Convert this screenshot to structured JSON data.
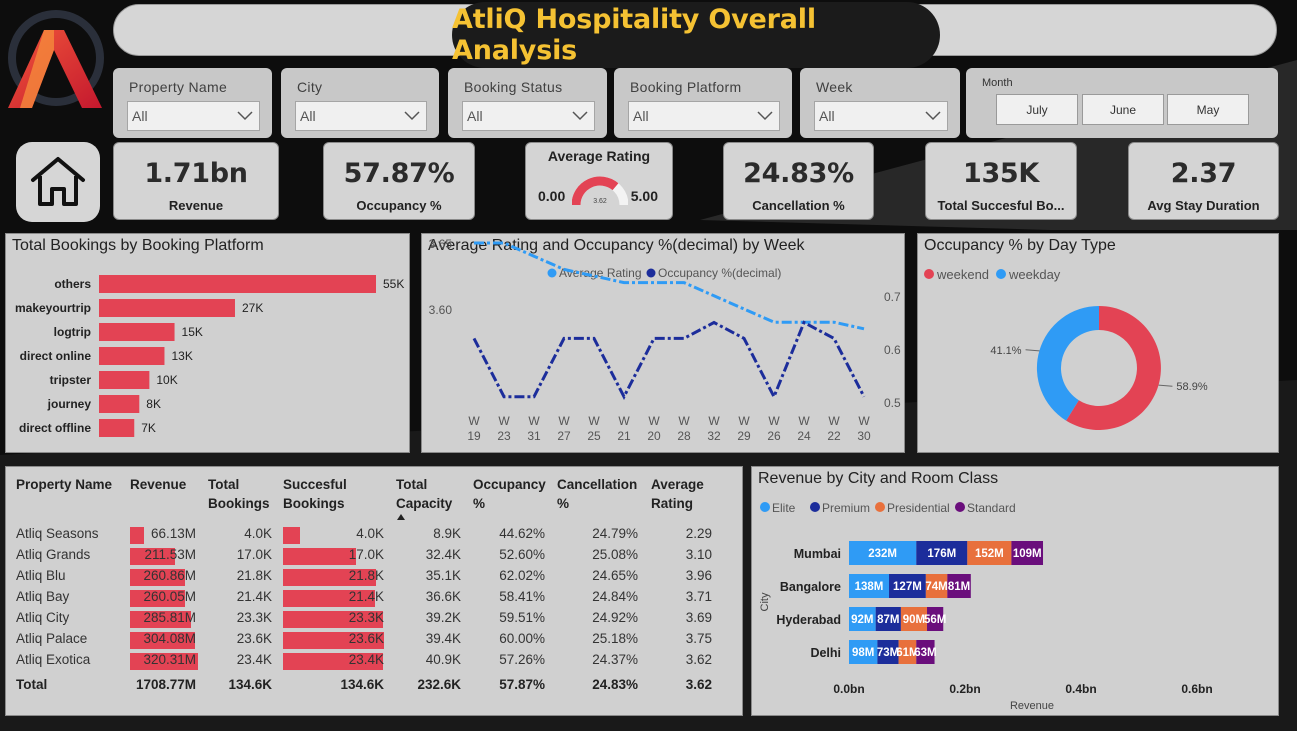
{
  "title": "AtliQ Hospitality Overall Analysis",
  "colors": {
    "accent": "#e34354",
    "gold": "#f5c233",
    "elite": "#2f9bf5",
    "premium": "#1c2d9b",
    "presidential": "#e8703c",
    "standard": "#6a0e7c",
    "avg_rating_line": "#2f9bf5",
    "occupancy_line": "#1c2d9b"
  },
  "filters": [
    {
      "label": "Property Name",
      "value": "All"
    },
    {
      "label": "City",
      "value": "All"
    },
    {
      "label": "Booking Status",
      "value": "All"
    },
    {
      "label": "Booking Platform",
      "value": "All"
    },
    {
      "label": "Week",
      "value": "All"
    }
  ],
  "month": {
    "label": "Month",
    "options": [
      "July",
      "June",
      "May"
    ]
  },
  "kpis": {
    "revenue": {
      "value": "1.71bn",
      "label": "Revenue"
    },
    "occupancy": {
      "value": "57.87%",
      "label": "Occupancy %"
    },
    "rating": {
      "label": "Average Rating",
      "min": "0.00",
      "max": "5.00",
      "value": "3.62",
      "fraction": 0.724
    },
    "cancellation": {
      "value": "24.83%",
      "label": "Cancellation %"
    },
    "bookings": {
      "value": "135K",
      "label": "Total Succesful Bo..."
    },
    "stay": {
      "value": "2.37",
      "label": "Avg Stay Duration"
    }
  },
  "platform_chart": {
    "title": "Total Bookings by Booking Platform"
  },
  "week_chart": {
    "title": "Average Rating and Occupancy %(decimal) by Week"
  },
  "daytype_chart": {
    "title": "Occupancy % by Day Type"
  },
  "city_chart": {
    "title": "Revenue by City and Room Class",
    "xlabel": "Revenue",
    "ylabel": "City"
  },
  "chart_data": [
    {
      "type": "bar",
      "orientation": "horizontal",
      "categories": [
        "others",
        "makeyourtrip",
        "logtrip",
        "direct online",
        "tripster",
        "journey",
        "direct offline"
      ],
      "values": [
        55,
        27,
        15,
        13,
        10,
        8,
        7
      ],
      "labels": [
        "55K",
        "27K",
        "15K",
        "13K",
        "10K",
        "8K",
        "7K"
      ]
    },
    {
      "type": "line",
      "x": [
        "W 19",
        "W 23",
        "W 31",
        "W 27",
        "W 25",
        "W 21",
        "W 20",
        "W 28",
        "W 32",
        "W 29",
        "W 26",
        "W 24",
        "W 22",
        "W 30"
      ],
      "series": [
        {
          "name": "Average Rating",
          "axis": "left",
          "values": [
            3.65,
            3.65,
            3.64,
            3.63,
            3.625,
            3.62,
            3.62,
            3.62,
            3.61,
            3.6,
            3.59,
            3.59,
            3.59,
            3.585
          ]
        },
        {
          "name": "Occupancy %(decimal)",
          "axis": "right",
          "values": [
            0.62,
            0.51,
            0.51,
            0.62,
            0.62,
            0.51,
            0.62,
            0.62,
            0.65,
            0.62,
            0.51,
            0.65,
            0.62,
            0.51
          ]
        }
      ],
      "y_left_ticks": [
        "3.60",
        "3.65"
      ],
      "y_right_ticks": [
        "0.5",
        "0.6",
        "0.7"
      ],
      "legend": "top"
    },
    {
      "type": "pie",
      "donut": true,
      "categories": [
        "weekend",
        "weekday"
      ],
      "values": [
        58.9,
        41.1
      ],
      "labels": [
        "58.9%",
        "41.1%"
      ],
      "legend": "top-left"
    },
    {
      "type": "bar",
      "orientation": "horizontal",
      "stacked": true,
      "categories": [
        "Mumbai",
        "Bangalore",
        "Hyderabad",
        "Delhi"
      ],
      "series": [
        {
          "name": "Elite",
          "values": [
            232,
            138,
            92,
            98
          ],
          "labels": [
            "232M",
            "138M",
            "92M",
            "98M"
          ]
        },
        {
          "name": "Premium",
          "values": [
            176,
            127,
            87,
            73
          ],
          "labels": [
            "176M",
            "127M",
            "87M",
            "73M"
          ]
        },
        {
          "name": "Presidential",
          "values": [
            152,
            74,
            90,
            61
          ],
          "labels": [
            "152M",
            "74M",
            "90M",
            "61M"
          ]
        },
        {
          "name": "Standard",
          "values": [
            109,
            81,
            56,
            63
          ],
          "labels": [
            "109M",
            "81M",
            "56M",
            "63M"
          ]
        }
      ],
      "x_ticks": [
        "0.0bn",
        "0.2bn",
        "0.4bn",
        "0.6bn"
      ],
      "legend": "top-left"
    },
    {
      "type": "table",
      "headers": [
        [
          "Property Name"
        ],
        [
          "Revenue"
        ],
        [
          "Total",
          "Bookings"
        ],
        [
          "Succesful",
          "Bookings"
        ],
        [
          "Total",
          "Capacity"
        ],
        [
          "Occupancy",
          "%"
        ],
        [
          "Cancellation",
          "%"
        ],
        [
          "Average",
          "Rating"
        ]
      ],
      "sort_column": "Total Capacity",
      "rows": [
        {
          "name": "Atliq Seasons",
          "revenue": "66.13M",
          "rev_value": 66.13,
          "total": "4.0K",
          "success": "4.0K",
          "suc_value": 4.0,
          "capacity": "8.9K",
          "occ": "44.62%",
          "canc": "24.79%",
          "rating": "2.29"
        },
        {
          "name": "Atliq Grands",
          "revenue": "211.53M",
          "rev_value": 211.53,
          "total": "17.0K",
          "success": "17.0K",
          "suc_value": 17.0,
          "capacity": "32.4K",
          "occ": "52.60%",
          "canc": "25.08%",
          "rating": "3.10"
        },
        {
          "name": "Atliq Blu",
          "revenue": "260.86M",
          "rev_value": 260.86,
          "total": "21.8K",
          "success": "21.8K",
          "suc_value": 21.8,
          "capacity": "35.1K",
          "occ": "62.02%",
          "canc": "24.65%",
          "rating": "3.96"
        },
        {
          "name": "Atliq Bay",
          "revenue": "260.05M",
          "rev_value": 260.05,
          "total": "21.4K",
          "success": "21.4K",
          "suc_value": 21.4,
          "capacity": "36.6K",
          "occ": "58.41%",
          "canc": "24.84%",
          "rating": "3.71"
        },
        {
          "name": "Atliq City",
          "revenue": "285.81M",
          "rev_value": 285.81,
          "total": "23.3K",
          "success": "23.3K",
          "suc_value": 23.3,
          "capacity": "39.2K",
          "occ": "59.51%",
          "canc": "24.92%",
          "rating": "3.69"
        },
        {
          "name": "Atliq Palace",
          "revenue": "304.08M",
          "rev_value": 304.08,
          "total": "23.6K",
          "success": "23.6K",
          "suc_value": 23.6,
          "capacity": "39.4K",
          "occ": "60.00%",
          "canc": "25.18%",
          "rating": "3.75"
        },
        {
          "name": "Atliq Exotica",
          "revenue": "320.31M",
          "rev_value": 320.31,
          "total": "23.4K",
          "success": "23.4K",
          "suc_value": 23.4,
          "capacity": "40.9K",
          "occ": "57.26%",
          "canc": "24.37%",
          "rating": "3.62"
        }
      ],
      "total": {
        "name": "Total",
        "revenue": "1708.77M",
        "total": "134.6K",
        "success": "134.6K",
        "capacity": "232.6K",
        "occ": "57.87%",
        "canc": "24.83%",
        "rating": "3.62"
      }
    }
  ]
}
